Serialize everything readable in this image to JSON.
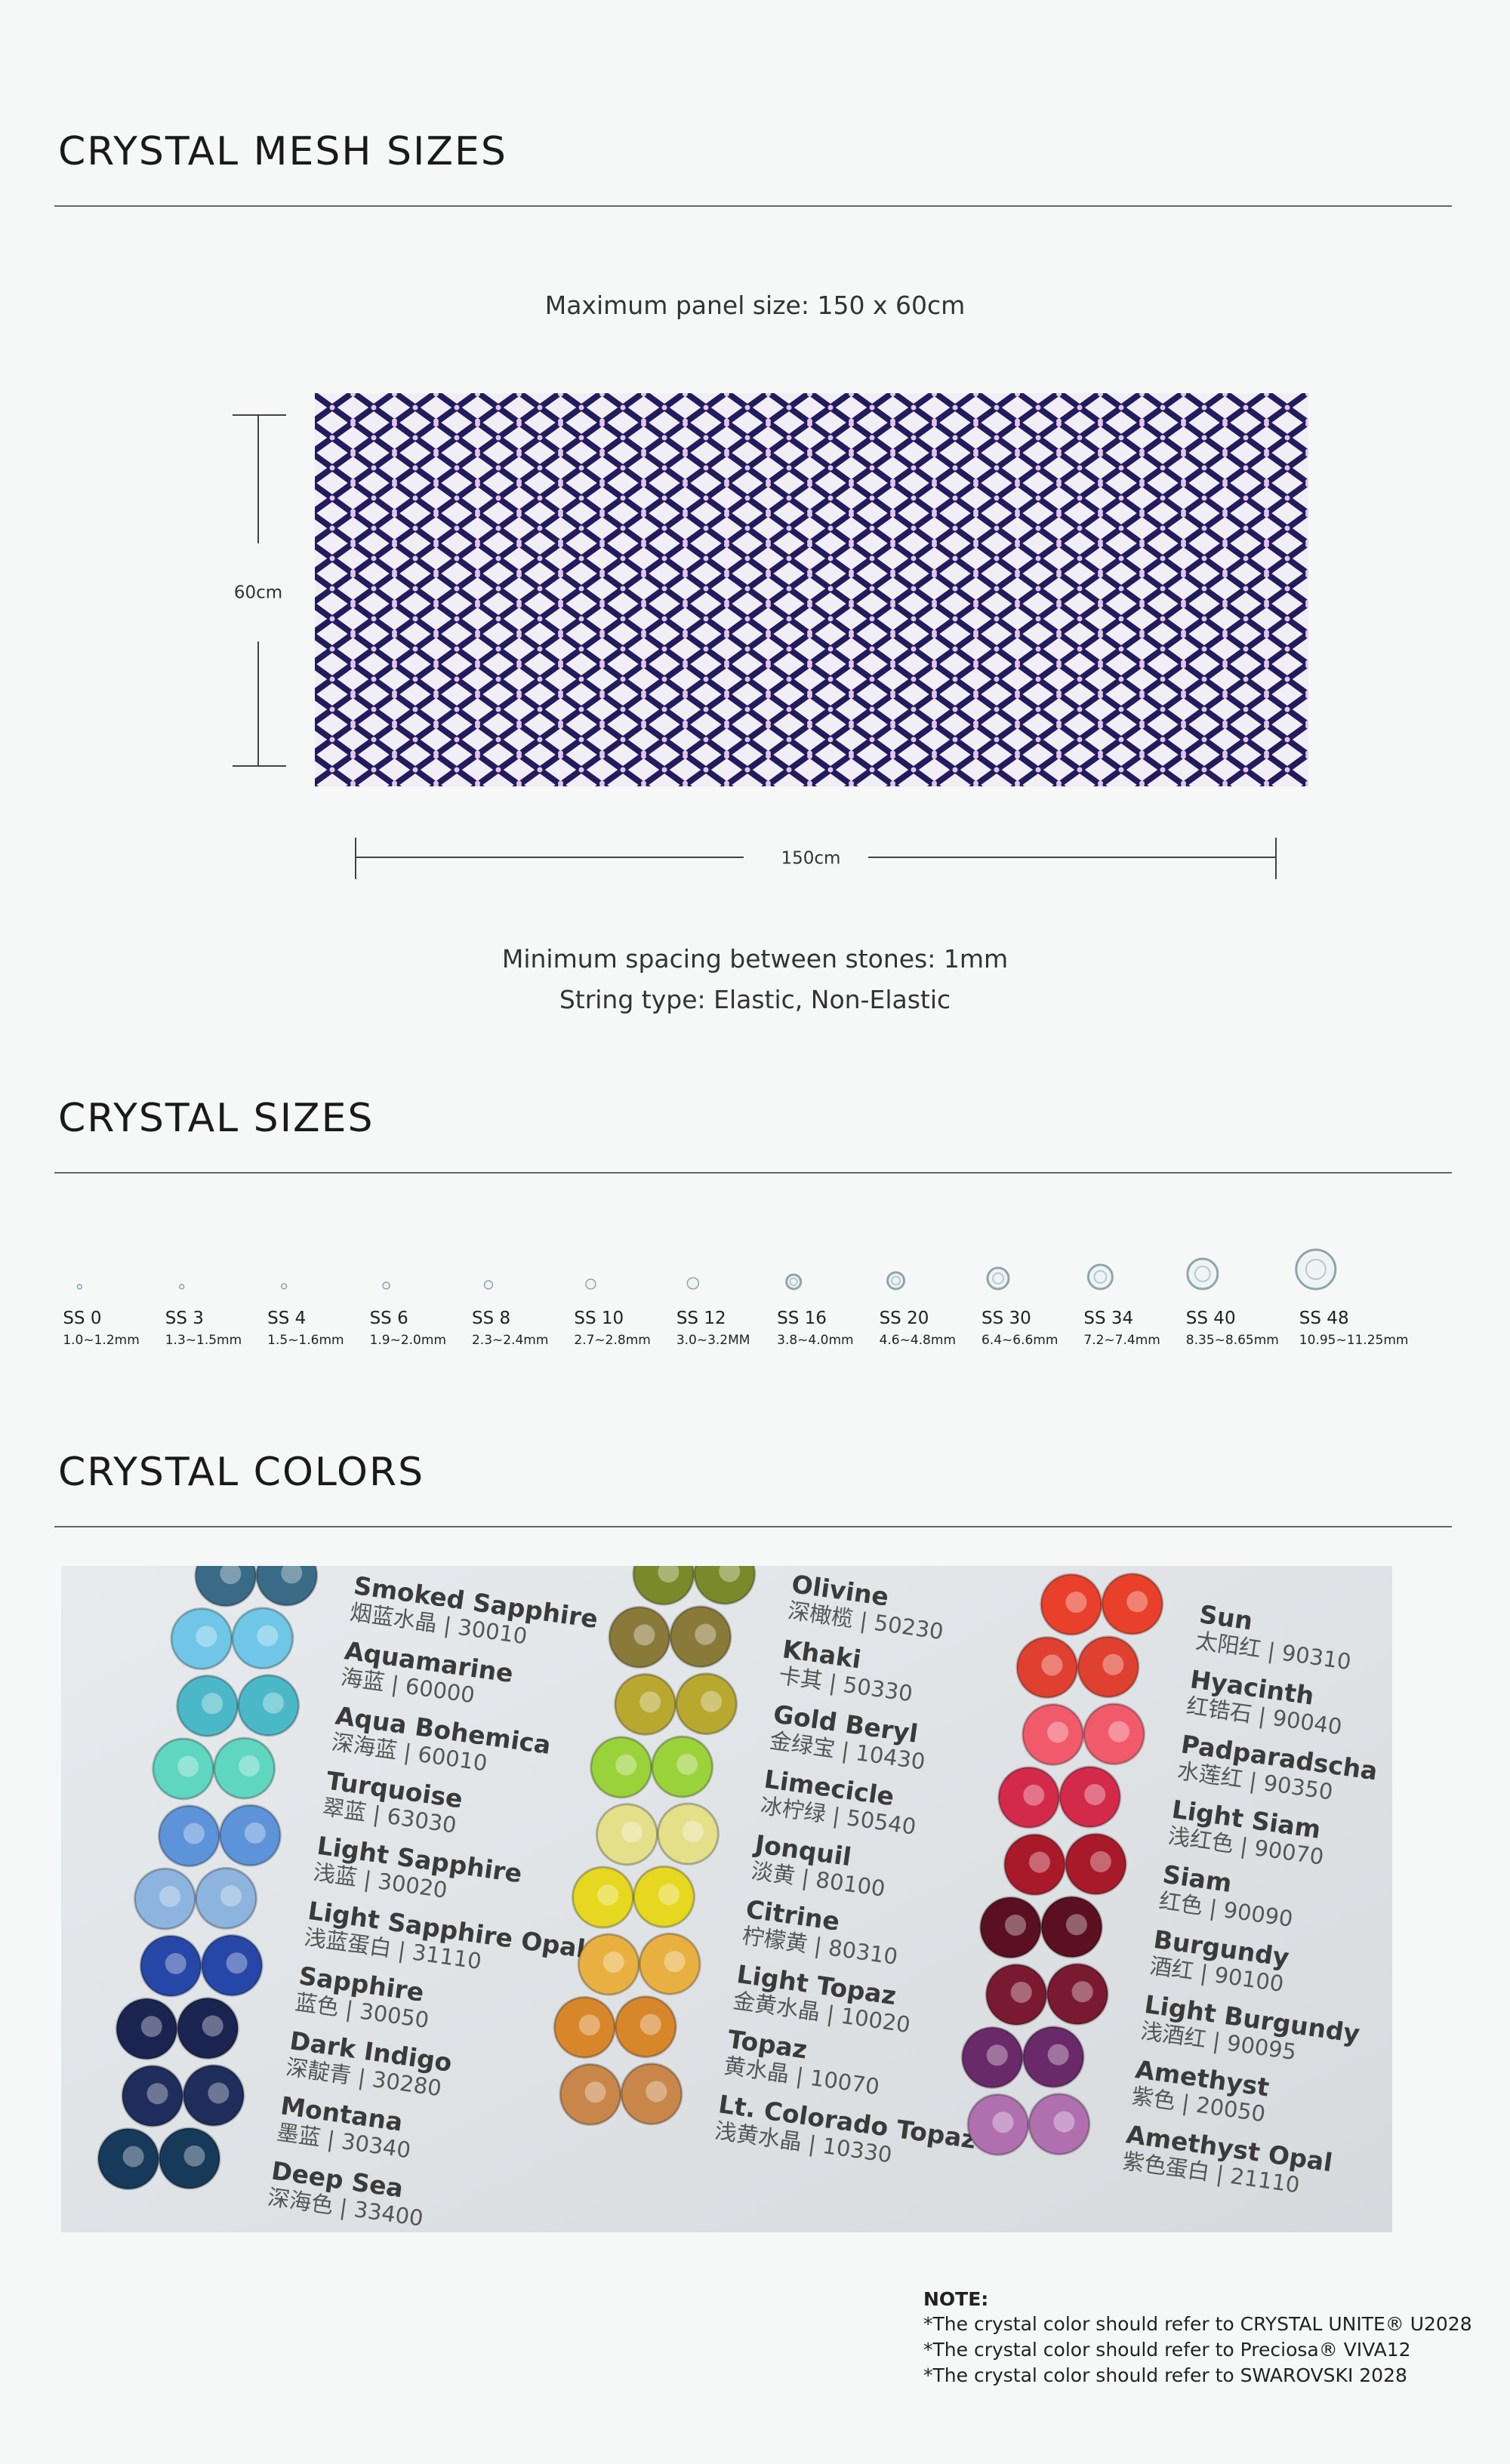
{
  "mesh": {
    "title": "CRYSTAL MESH SIZES",
    "panel_size": "Maximum panel size: 150 x 60cm",
    "height_label": "60cm",
    "width_label": "150cm",
    "spacing": "Minimum spacing between stones: 1mm",
    "string_type": "String type: Elastic, Non-Elastic"
  },
  "sizes": {
    "title": "CRYSTAL SIZES",
    "items": [
      {
        "name": "SS 0",
        "range": "1.0~1.2mm"
      },
      {
        "name": "SS 3",
        "range": "1.3~1.5mm"
      },
      {
        "name": "SS 4",
        "range": "1.5~1.6mm"
      },
      {
        "name": "SS 6",
        "range": "1.9~2.0mm"
      },
      {
        "name": "SS 8",
        "range": "2.3~2.4mm"
      },
      {
        "name": "SS 10",
        "range": "2.7~2.8mm"
      },
      {
        "name": "SS 12",
        "range": "3.0~3.2MM"
      },
      {
        "name": "SS 16",
        "range": "3.8~4.0mm"
      },
      {
        "name": "SS 20",
        "range": "4.6~4.8mm"
      },
      {
        "name": "SS 30",
        "range": "6.4~6.6mm"
      },
      {
        "name": "SS 34",
        "range": "7.2~7.4mm"
      },
      {
        "name": "SS 40",
        "range": "8.35~8.65mm"
      },
      {
        "name": "SS 48",
        "range": "10.95~11.25mm"
      }
    ]
  },
  "colors": {
    "title": "CRYSTAL COLORS",
    "photo_columns": [
      [
        {
          "name": "Smoked Sapphire",
          "sub": "烟蓝水晶 | 30010",
          "color": "#3a6b86"
        },
        {
          "name": "Aquamarine",
          "sub": "海蓝 | 60000",
          "color": "#6fc6e6"
        },
        {
          "name": "Aqua Bohemica",
          "sub": "深海蓝 | 60010",
          "color": "#4bb8c8"
        },
        {
          "name": "Turquoise",
          "sub": "翠蓝 | 63030",
          "color": "#5fd6c0"
        },
        {
          "name": "Light Sapphire",
          "sub": "浅蓝 | 30020",
          "color": "#5d93d9"
        },
        {
          "name": "Light Sapphire Opal",
          "sub": "浅蓝蛋白 | 31110",
          "color": "#8db4de"
        },
        {
          "name": "Sapphire",
          "sub": "蓝色 | 30050",
          "color": "#2747a8"
        },
        {
          "name": "Dark Indigo",
          "sub": "深靛青 | 30280",
          "color": "#1b2450"
        },
        {
          "name": "Montana",
          "sub": "墨蓝 | 30340",
          "color": "#1f2d5c"
        },
        {
          "name": "Deep Sea",
          "sub": "深海色 | 33400",
          "color": "#173a5a"
        }
      ],
      [
        {
          "name": "Olivine",
          "sub": "深橄榄 | 50230",
          "color": "#7a8a2a"
        },
        {
          "name": "Khaki",
          "sub": "卡其 | 50330",
          "color": "#8a7a3a"
        },
        {
          "name": "Gold Beryl",
          "sub": "金绿宝 | 10430",
          "color": "#b8a830"
        },
        {
          "name": "Limecicle",
          "sub": "冰柠绿 | 50540",
          "color": "#9ad23a"
        },
        {
          "name": "Jonquil",
          "sub": "淡黄 | 80100",
          "color": "#e4e08a"
        },
        {
          "name": "Citrine",
          "sub": "柠檬黄 | 80310",
          "color": "#e6d820"
        },
        {
          "name": "Light Topaz",
          "sub": "金黄水晶 | 10020",
          "color": "#e8b040"
        },
        {
          "name": "Topaz",
          "sub": "黄水晶 | 10070",
          "color": "#d8862a"
        },
        {
          "name": "Lt. Colorado Topaz",
          "sub": "浅黄水晶 | 10330",
          "color": "#c8864a"
        }
      ],
      [
        {
          "name": "Sun",
          "sub": "太阳红 | 90310",
          "color": "#e8402a"
        },
        {
          "name": "Hyacinth",
          "sub": "红锆石 | 90040",
          "color": "#e04030"
        },
        {
          "name": "Padparadscha",
          "sub": "水莲红 | 90350",
          "color": "#f05a6a"
        },
        {
          "name": "Light Siam",
          "sub": "浅红色 | 90070",
          "color": "#d42a4a"
        },
        {
          "name": "Siam",
          "sub": "红色 | 90090",
          "color": "#a81a2a"
        },
        {
          "name": "Burgundy",
          "sub": "酒红 | 90100",
          "color": "#5a1020"
        },
        {
          "name": "Light Burgundy",
          "sub": "浅酒红 | 90095",
          "color": "#7a1a30"
        },
        {
          "name": "Amethyst",
          "sub": "紫色 | 20050",
          "color": "#6a2a6a"
        },
        {
          "name": "Amethyst Opal",
          "sub": "紫色蛋白 | 21110",
          "color": "#b070b0"
        }
      ]
    ]
  },
  "note": {
    "title": "NOTE:",
    "lines": [
      "*The crystal color should refer to CRYSTAL UNITE® U2028",
      "*The crystal color should refer to Preciosa® VIVA12",
      "*The crystal color should refer to SWAROVSKI 2028"
    ]
  }
}
